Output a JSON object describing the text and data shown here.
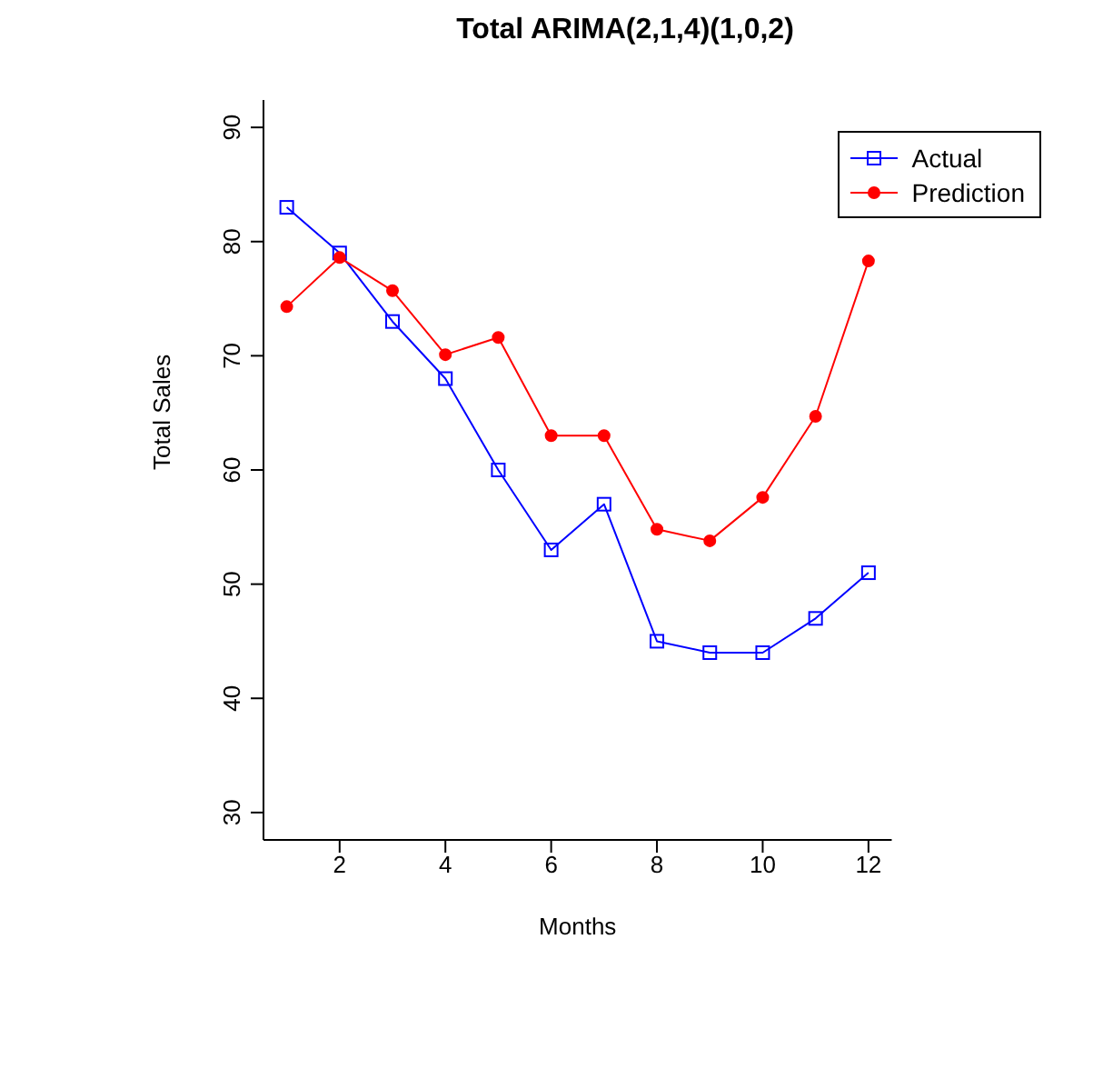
{
  "chart_data": {
    "type": "line",
    "title": "Total ARIMA(2,1,4)(1,0,2)",
    "xlabel": "Months",
    "ylabel": "Total Sales",
    "x": [
      1,
      2,
      3,
      4,
      5,
      6,
      7,
      8,
      9,
      10,
      11,
      12
    ],
    "series": [
      {
        "name": "Actual",
        "color": "#0000ff",
        "marker": "square",
        "values": [
          83,
          79,
          73,
          68,
          60,
          53,
          57,
          45,
          44,
          44,
          47,
          51
        ]
      },
      {
        "name": "Prediction",
        "color": "#ff0000",
        "marker": "circle",
        "values": [
          74.3,
          78.6,
          75.7,
          70.1,
          71.6,
          63.0,
          63.0,
          54.8,
          53.8,
          57.6,
          64.7,
          78.3
        ]
      }
    ],
    "xlim": [
      0.56,
      12.44
    ],
    "xticks": [
      2,
      4,
      6,
      8,
      10,
      12
    ],
    "ylim": [
      27.6,
      92.4
    ],
    "yticks": [
      30,
      40,
      50,
      60,
      70,
      80,
      90
    ],
    "grid": false,
    "legend": "top right",
    "line_style": "solid"
  }
}
